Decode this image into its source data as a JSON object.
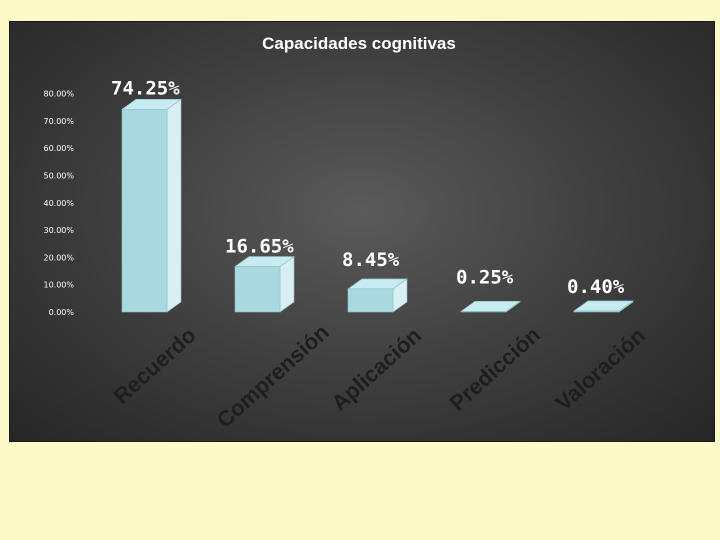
{
  "chart_data": {
    "type": "bar",
    "title": "Capacidades cognitivas",
    "categories": [
      "Recuerdo",
      "Comprensión",
      "Aplicación",
      "Predicción",
      "Valoración"
    ],
    "values": [
      74.25,
      16.65,
      8.45,
      0.25,
      0.4
    ],
    "data_labels": [
      "74.25%",
      "16.65%",
      "8.45%",
      "0.25%",
      "0.40%"
    ],
    "y_ticks": [
      "0.00%",
      "10.00%",
      "20.00%",
      "30.00%",
      "40.00%",
      "50.00%",
      "60.00%",
      "70.00%",
      "80.00%"
    ],
    "ylim": [
      0,
      80
    ],
    "grid": false,
    "legend": "none",
    "style": "3d-column",
    "colors": {
      "bar_front": "#a9d9df",
      "bar_side": "#d8f0f3",
      "bar_top": "#c6ebf0",
      "background": "#3c3c3c",
      "page": "#fbfbc9"
    }
  }
}
